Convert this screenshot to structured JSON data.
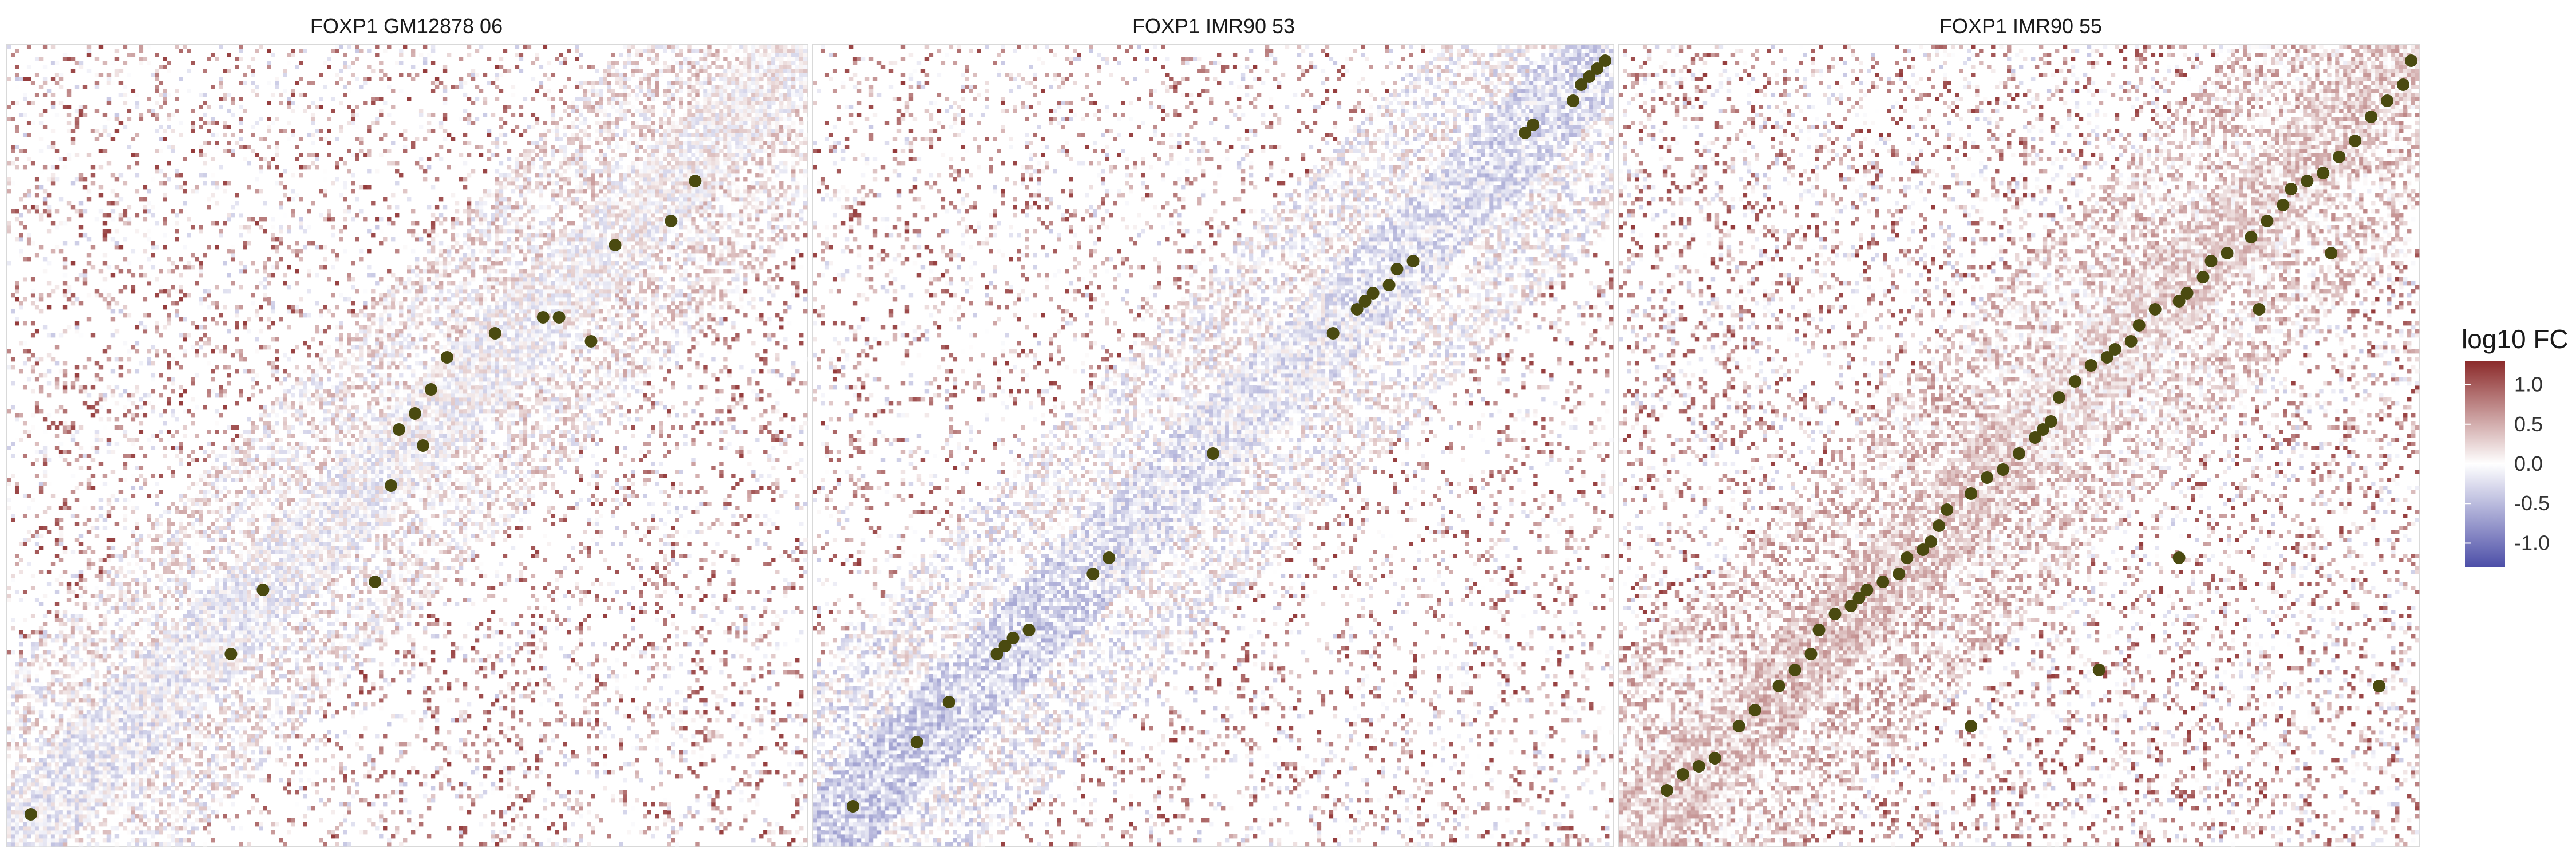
{
  "chart_data": [
    {
      "type": "heatmap",
      "title": "FOXP1 GM12878 06",
      "colorbar_label": "log10 FC",
      "grid": false,
      "cells": {
        "band_mean": [
          -0.12,
          -0.08,
          -0.05,
          -0.02,
          0.02,
          0.05
        ],
        "offdiag_sign": "mostly-positive",
        "density": 0.18,
        "seed": 11
      },
      "highlighted_loops": [
        [
          0.03,
          0.04
        ],
        [
          0.28,
          0.24
        ],
        [
          0.32,
          0.32
        ],
        [
          0.48,
          0.45
        ],
        [
          0.49,
          0.52
        ],
        [
          0.51,
          0.54
        ],
        [
          0.52,
          0.5
        ],
        [
          0.53,
          0.57
        ],
        [
          0.55,
          0.61
        ],
        [
          0.61,
          0.64
        ],
        [
          0.67,
          0.66
        ],
        [
          0.69,
          0.66
        ],
        [
          0.73,
          0.63
        ],
        [
          0.76,
          0.75
        ],
        [
          0.83,
          0.78
        ],
        [
          0.86,
          0.83
        ],
        [
          0.46,
          0.33
        ]
      ]
    },
    {
      "type": "heatmap",
      "title": "FOXP1 IMR90 53",
      "colorbar_label": "log10 FC",
      "grid": false,
      "cells": {
        "band_mean": [
          -0.35,
          -0.3,
          -0.2,
          -0.15,
          -0.2,
          -0.25
        ],
        "offdiag_sign": "mostly-positive",
        "density": 0.16,
        "seed": 23
      },
      "highlighted_loops": [
        [
          0.05,
          0.05
        ],
        [
          0.13,
          0.13
        ],
        [
          0.17,
          0.18
        ],
        [
          0.23,
          0.24
        ],
        [
          0.24,
          0.25
        ],
        [
          0.25,
          0.26
        ],
        [
          0.27,
          0.27
        ],
        [
          0.35,
          0.34
        ],
        [
          0.37,
          0.36
        ],
        [
          0.5,
          0.49
        ],
        [
          0.65,
          0.64
        ],
        [
          0.68,
          0.67
        ],
        [
          0.69,
          0.68
        ],
        [
          0.7,
          0.69
        ],
        [
          0.72,
          0.7
        ],
        [
          0.73,
          0.72
        ],
        [
          0.75,
          0.73
        ],
        [
          0.89,
          0.89
        ],
        [
          0.9,
          0.9
        ],
        [
          0.95,
          0.93
        ],
        [
          0.96,
          0.95
        ],
        [
          0.97,
          0.96
        ],
        [
          0.98,
          0.97
        ],
        [
          0.99,
          0.98
        ]
      ]
    },
    {
      "type": "heatmap",
      "title": "FOXP1 IMR90 55",
      "colorbar_label": "log10 FC",
      "grid": false,
      "cells": {
        "band_mean": [
          0.3,
          0.35,
          0.3,
          0.2,
          0.25,
          0.3
        ],
        "offdiag_sign": "mostly-positive",
        "density": 0.22,
        "seed": 37
      },
      "highlighted_loops": [
        [
          0.06,
          0.07
        ],
        [
          0.08,
          0.09
        ],
        [
          0.1,
          0.1
        ],
        [
          0.12,
          0.11
        ],
        [
          0.15,
          0.15
        ],
        [
          0.17,
          0.17
        ],
        [
          0.2,
          0.2
        ],
        [
          0.22,
          0.22
        ],
        [
          0.24,
          0.24
        ],
        [
          0.25,
          0.27
        ],
        [
          0.27,
          0.29
        ],
        [
          0.29,
          0.3
        ],
        [
          0.3,
          0.31
        ],
        [
          0.31,
          0.32
        ],
        [
          0.33,
          0.33
        ],
        [
          0.35,
          0.34
        ],
        [
          0.36,
          0.36
        ],
        [
          0.38,
          0.37
        ],
        [
          0.39,
          0.38
        ],
        [
          0.4,
          0.4
        ],
        [
          0.41,
          0.42
        ],
        [
          0.44,
          0.44
        ],
        [
          0.46,
          0.46
        ],
        [
          0.48,
          0.47
        ],
        [
          0.5,
          0.49
        ],
        [
          0.52,
          0.51
        ],
        [
          0.53,
          0.52
        ],
        [
          0.54,
          0.53
        ],
        [
          0.55,
          0.56
        ],
        [
          0.57,
          0.58
        ],
        [
          0.59,
          0.6
        ],
        [
          0.61,
          0.61
        ],
        [
          0.62,
          0.62
        ],
        [
          0.64,
          0.63
        ],
        [
          0.65,
          0.65
        ],
        [
          0.67,
          0.67
        ],
        [
          0.7,
          0.68
        ],
        [
          0.71,
          0.69
        ],
        [
          0.73,
          0.71
        ],
        [
          0.74,
          0.73
        ],
        [
          0.76,
          0.74
        ],
        [
          0.79,
          0.76
        ],
        [
          0.81,
          0.78
        ],
        [
          0.83,
          0.8
        ],
        [
          0.84,
          0.82
        ],
        [
          0.86,
          0.83
        ],
        [
          0.88,
          0.84
        ],
        [
          0.9,
          0.86
        ],
        [
          0.92,
          0.88
        ],
        [
          0.94,
          0.91
        ],
        [
          0.96,
          0.93
        ],
        [
          0.98,
          0.95
        ],
        [
          0.99,
          0.98
        ],
        [
          0.7,
          0.36
        ],
        [
          0.6,
          0.22
        ],
        [
          0.44,
          0.15
        ],
        [
          0.8,
          0.67
        ],
        [
          0.89,
          0.74
        ],
        [
          0.95,
          0.2
        ]
      ]
    }
  ],
  "legend": {
    "title": "log10 FC",
    "ticks": [
      "1.0",
      "0.5",
      "0.0",
      "-0.5",
      "-1.0"
    ],
    "tick_values": [
      1.0,
      0.5,
      0.0,
      -0.5,
      -1.0
    ],
    "range": [
      -1.3,
      1.3
    ],
    "colors": {
      "high": "#8b2a2a",
      "mid": "#ffffff",
      "low": "#4d4fa8"
    }
  },
  "style": {
    "point_color": "#4a4a10",
    "panel_border": "#d9d9d9"
  }
}
